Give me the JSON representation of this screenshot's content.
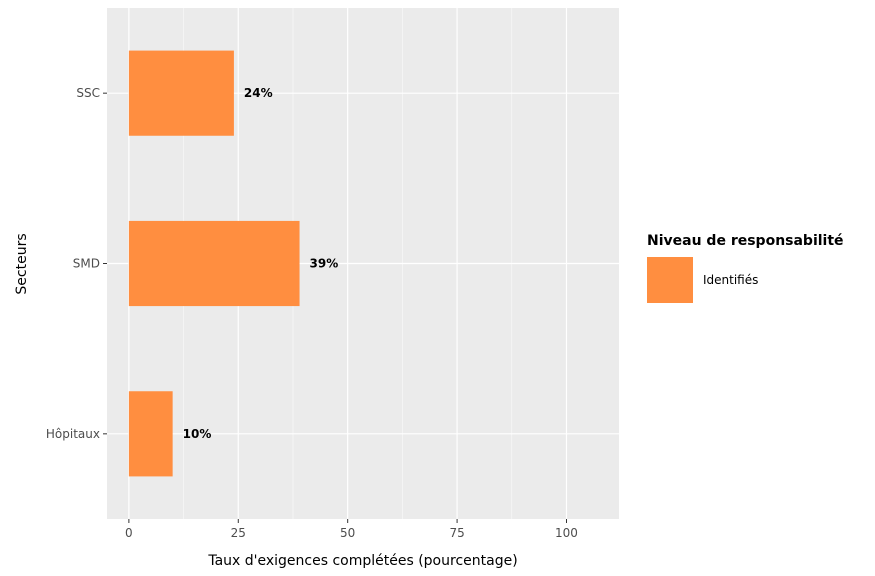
{
  "chart_data": {
    "type": "bar",
    "orientation": "horizontal",
    "categories": [
      "SSC",
      "SMD",
      "Hôpitaux"
    ],
    "series": [
      {
        "name": "Identifiés",
        "values": [
          24,
          39,
          10
        ],
        "labels": [
          "24%",
          "39%",
          "10%"
        ],
        "color": "#FF8E40"
      }
    ],
    "xlabel": "Taux d'exigences complétées (pourcentage)",
    "ylabel": "Secteurs",
    "xlim": [
      -5,
      112
    ],
    "xticks": [
      0,
      25,
      50,
      75,
      100
    ],
    "xtick_labels": [
      "0",
      "25",
      "50",
      "75",
      "100"
    ],
    "grid": true,
    "legend": {
      "title": "Niveau de responsabilité",
      "placement": "right"
    },
    "colors": {
      "panel_background": "#EBEBEB",
      "grid_major": "#FFFFFF",
      "tick_text": "#4D4D4D",
      "tick_mark": "#333333"
    }
  }
}
